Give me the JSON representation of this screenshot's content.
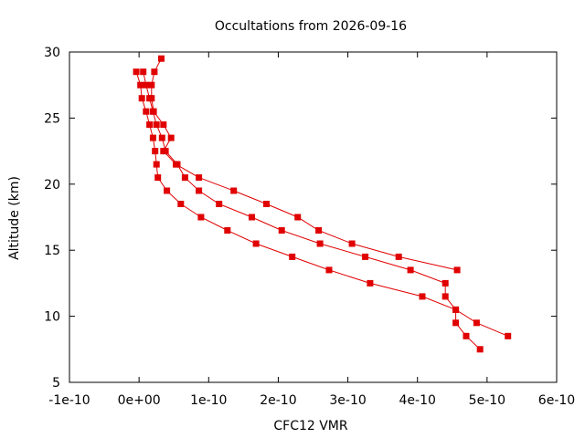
{
  "chart_data": {
    "type": "line",
    "title": "Occultations from 2026-09-16",
    "xlabel": "CFC12 VMR",
    "ylabel": "Altitude (km)",
    "xlim": [
      -1e-10,
      6e-10
    ],
    "ylim": [
      5,
      30
    ],
    "x_ticks": [
      -1e-10,
      0,
      1e-10,
      2e-10,
      3e-10,
      4e-10,
      5e-10,
      6e-10
    ],
    "x_tick_labels": [
      "-1e-10",
      "0e+00",
      "1e-10",
      "2e-10",
      "3e-10",
      "4e-10",
      "5e-10",
      "6e-10"
    ],
    "y_ticks": [
      5,
      10,
      15,
      20,
      25,
      30
    ],
    "y_tick_labels": [
      "5",
      "10",
      "15",
      "20",
      "25",
      "30"
    ],
    "grid": false,
    "legend": "none",
    "color": "#e00000",
    "marker": "square",
    "series": [
      {
        "points": [
          [
            4.9e-10,
            7.5
          ],
          [
            4.7e-10,
            8.5
          ],
          [
            4.55e-10,
            9.5
          ],
          [
            4.55e-10,
            10.5
          ],
          [
            4.4e-10,
            11.5
          ],
          [
            4.4e-10,
            12.5
          ],
          [
            3.9e-10,
            13.5
          ],
          [
            3.25e-10,
            14.5
          ],
          [
            2.6e-10,
            15.5
          ],
          [
            2.05e-10,
            16.5
          ],
          [
            1.62e-10,
            17.5
          ],
          [
            1.15e-10,
            18.5
          ],
          [
            8.6e-11,
            19.5
          ],
          [
            6.6e-11,
            20.5
          ],
          [
            5.5e-11,
            21.5
          ],
          [
            3.8e-11,
            22.5
          ],
          [
            3.3e-11,
            23.5
          ],
          [
            2.5e-11,
            24.5
          ],
          [
            2e-11,
            25.5
          ],
          [
            1.5e-11,
            26.5
          ],
          [
            1e-11,
            27.5
          ],
          [
            6e-12,
            28.5
          ]
        ]
      },
      {
        "points": [
          [
            5.3e-10,
            8.5
          ],
          [
            4.85e-10,
            9.5
          ],
          [
            4.55e-10,
            10.5
          ],
          [
            4.07e-10,
            11.5
          ],
          [
            3.32e-10,
            12.5
          ],
          [
            2.73e-10,
            13.5
          ],
          [
            2.2e-10,
            14.5
          ],
          [
            1.68e-10,
            15.5
          ],
          [
            1.27e-10,
            16.5
          ],
          [
            8.9e-11,
            17.5
          ],
          [
            6e-11,
            18.5
          ],
          [
            4e-11,
            19.5
          ],
          [
            2.7e-11,
            20.5
          ],
          [
            2.5e-11,
            21.5
          ],
          [
            2.3e-11,
            22.5
          ],
          [
            2e-11,
            23.5
          ],
          [
            1.5e-11,
            24.5
          ],
          [
            1e-11,
            25.5
          ],
          [
            4e-12,
            26.5
          ],
          [
            2e-12,
            27.5
          ],
          [
            -4e-12,
            28.5
          ]
        ]
      },
      {
        "points": [
          [
            4.57e-10,
            13.5
          ],
          [
            3.73e-10,
            14.5
          ],
          [
            3.06e-10,
            15.5
          ],
          [
            2.58e-10,
            16.5
          ],
          [
            2.28e-10,
            17.5
          ],
          [
            1.83e-10,
            18.5
          ],
          [
            1.36e-10,
            19.5
          ],
          [
            8.6e-11,
            20.5
          ],
          [
            5.3e-11,
            21.5
          ],
          [
            3.5e-11,
            22.5
          ],
          [
            4.6e-11,
            23.5
          ],
          [
            3.5e-11,
            24.5
          ],
          [
            2.1e-11,
            25.5
          ],
          [
            1.8e-11,
            26.5
          ],
          [
            1.8e-11,
            27.5
          ],
          [
            2.2e-11,
            28.5
          ],
          [
            3.2e-11,
            29.5
          ]
        ]
      }
    ]
  }
}
